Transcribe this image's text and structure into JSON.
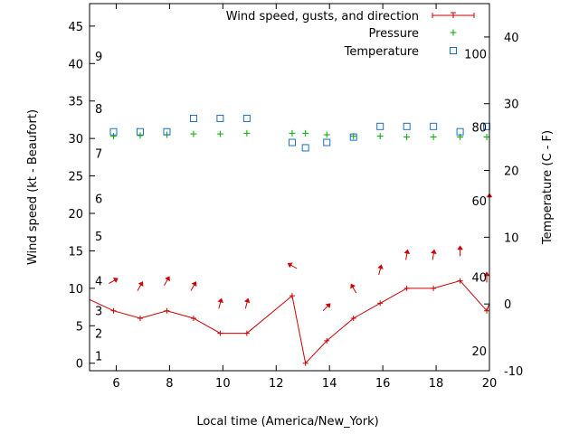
{
  "chart_data": {
    "type": "line",
    "xlabel": "Local time (America/New_York)",
    "ylabel": "Wind speed (kt - Beaufort)",
    "y2label": "Temperature (C - F)",
    "xlim": [
      5,
      20
    ],
    "ylim": [
      -1,
      48
    ],
    "y2lim": [
      -10,
      45
    ],
    "x_ticks": [
      6,
      8,
      10,
      12,
      14,
      16,
      18,
      20
    ],
    "y_ticks": [
      0,
      5,
      10,
      15,
      20,
      25,
      30,
      35,
      40,
      45
    ],
    "y2_ticks": [
      -10,
      0,
      10,
      20,
      30,
      40
    ],
    "beaufort_labels": [
      {
        "label": "1",
        "y": 1
      },
      {
        "label": "2",
        "y": 4
      },
      {
        "label": "3",
        "y": 7
      },
      {
        "label": "4",
        "y": 11
      },
      {
        "label": "5",
        "y": 17
      },
      {
        "label": "6",
        "y": 22
      },
      {
        "label": "7",
        "y": 28
      },
      {
        "label": "8",
        "y": 34
      },
      {
        "label": "9",
        "y": 41
      }
    ],
    "fahrenheit_labels": [
      {
        "label": "20",
        "y2": -7
      },
      {
        "label": "40",
        "y2": 4
      },
      {
        "label": "60",
        "y2": 15.5
      },
      {
        "label": "80",
        "y2": 26.5
      },
      {
        "label": "100",
        "y2": 37.5
      }
    ],
    "colors": {
      "wind": "#cc0000",
      "pressure": "#00aa00",
      "temperature": "#1f6fc0"
    },
    "series": [
      {
        "name": "Wind speed, gusts, and direction",
        "marker": "line+plus",
        "x": [
          5,
          5.9,
          6.9,
          7.9,
          8.9,
          9.9,
          10.9,
          12.6,
          13.1,
          13.9,
          14.9,
          15.9,
          16.9,
          17.9,
          18.9,
          19.9,
          20
        ],
        "y": [
          8.5,
          7,
          6,
          7,
          6,
          4,
          4,
          9,
          0,
          3,
          6,
          8,
          10,
          10,
          11,
          7,
          8
        ]
      },
      {
        "name": "Pressure",
        "marker": "plus",
        "x": [
          5.9,
          6.9,
          7.9,
          8.9,
          9.9,
          10.9,
          12.6,
          13.1,
          13.9,
          14.9,
          15.9,
          16.9,
          17.9,
          18.9,
          19.9
        ],
        "y": [
          30.3,
          30.4,
          30.5,
          30.6,
          30.6,
          30.7,
          30.7,
          30.7,
          30.5,
          30.3,
          30.3,
          30.2,
          30.2,
          30.2,
          30.2
        ]
      },
      {
        "name": "Temperature",
        "marker": "square",
        "axis": "y2",
        "x": [
          5.9,
          6.9,
          7.9,
          8.9,
          9.9,
          10.9,
          12.6,
          13.1,
          13.9,
          14.9,
          15.9,
          16.9,
          17.9,
          18.9,
          19.9
        ],
        "y": [
          25.8,
          25.8,
          25.8,
          27.8,
          27.8,
          27.8,
          24.2,
          23.4,
          24.2,
          25,
          26.6,
          26.6,
          26.6,
          25.8,
          26.6
        ]
      }
    ],
    "wind_direction_arrows": [
      {
        "x": 5.9,
        "y": 11,
        "toward_deg": 60
      },
      {
        "x": 6.9,
        "y": 10.3,
        "toward_deg": 30
      },
      {
        "x": 7.9,
        "y": 11,
        "toward_deg": 30
      },
      {
        "x": 8.9,
        "y": 10.3,
        "toward_deg": 30
      },
      {
        "x": 9.9,
        "y": 8,
        "toward_deg": 15
      },
      {
        "x": 10.9,
        "y": 8,
        "toward_deg": 15
      },
      {
        "x": 12.6,
        "y": 13,
        "toward_deg": 300
      },
      {
        "x": 13.9,
        "y": 7.5,
        "toward_deg": 45
      },
      {
        "x": 14.9,
        "y": 10,
        "toward_deg": 330
      },
      {
        "x": 15.9,
        "y": 12.5,
        "toward_deg": 15
      },
      {
        "x": 16.9,
        "y": 14.5,
        "toward_deg": 10
      },
      {
        "x": 17.9,
        "y": 14.5,
        "toward_deg": 10
      },
      {
        "x": 18.9,
        "y": 15,
        "toward_deg": 0
      },
      {
        "x": 19.9,
        "y": 11.5,
        "toward_deg": 0
      },
      {
        "x": 20,
        "y": 22,
        "toward_deg": 0
      }
    ],
    "legend_position": "top-right",
    "grid": false
  }
}
